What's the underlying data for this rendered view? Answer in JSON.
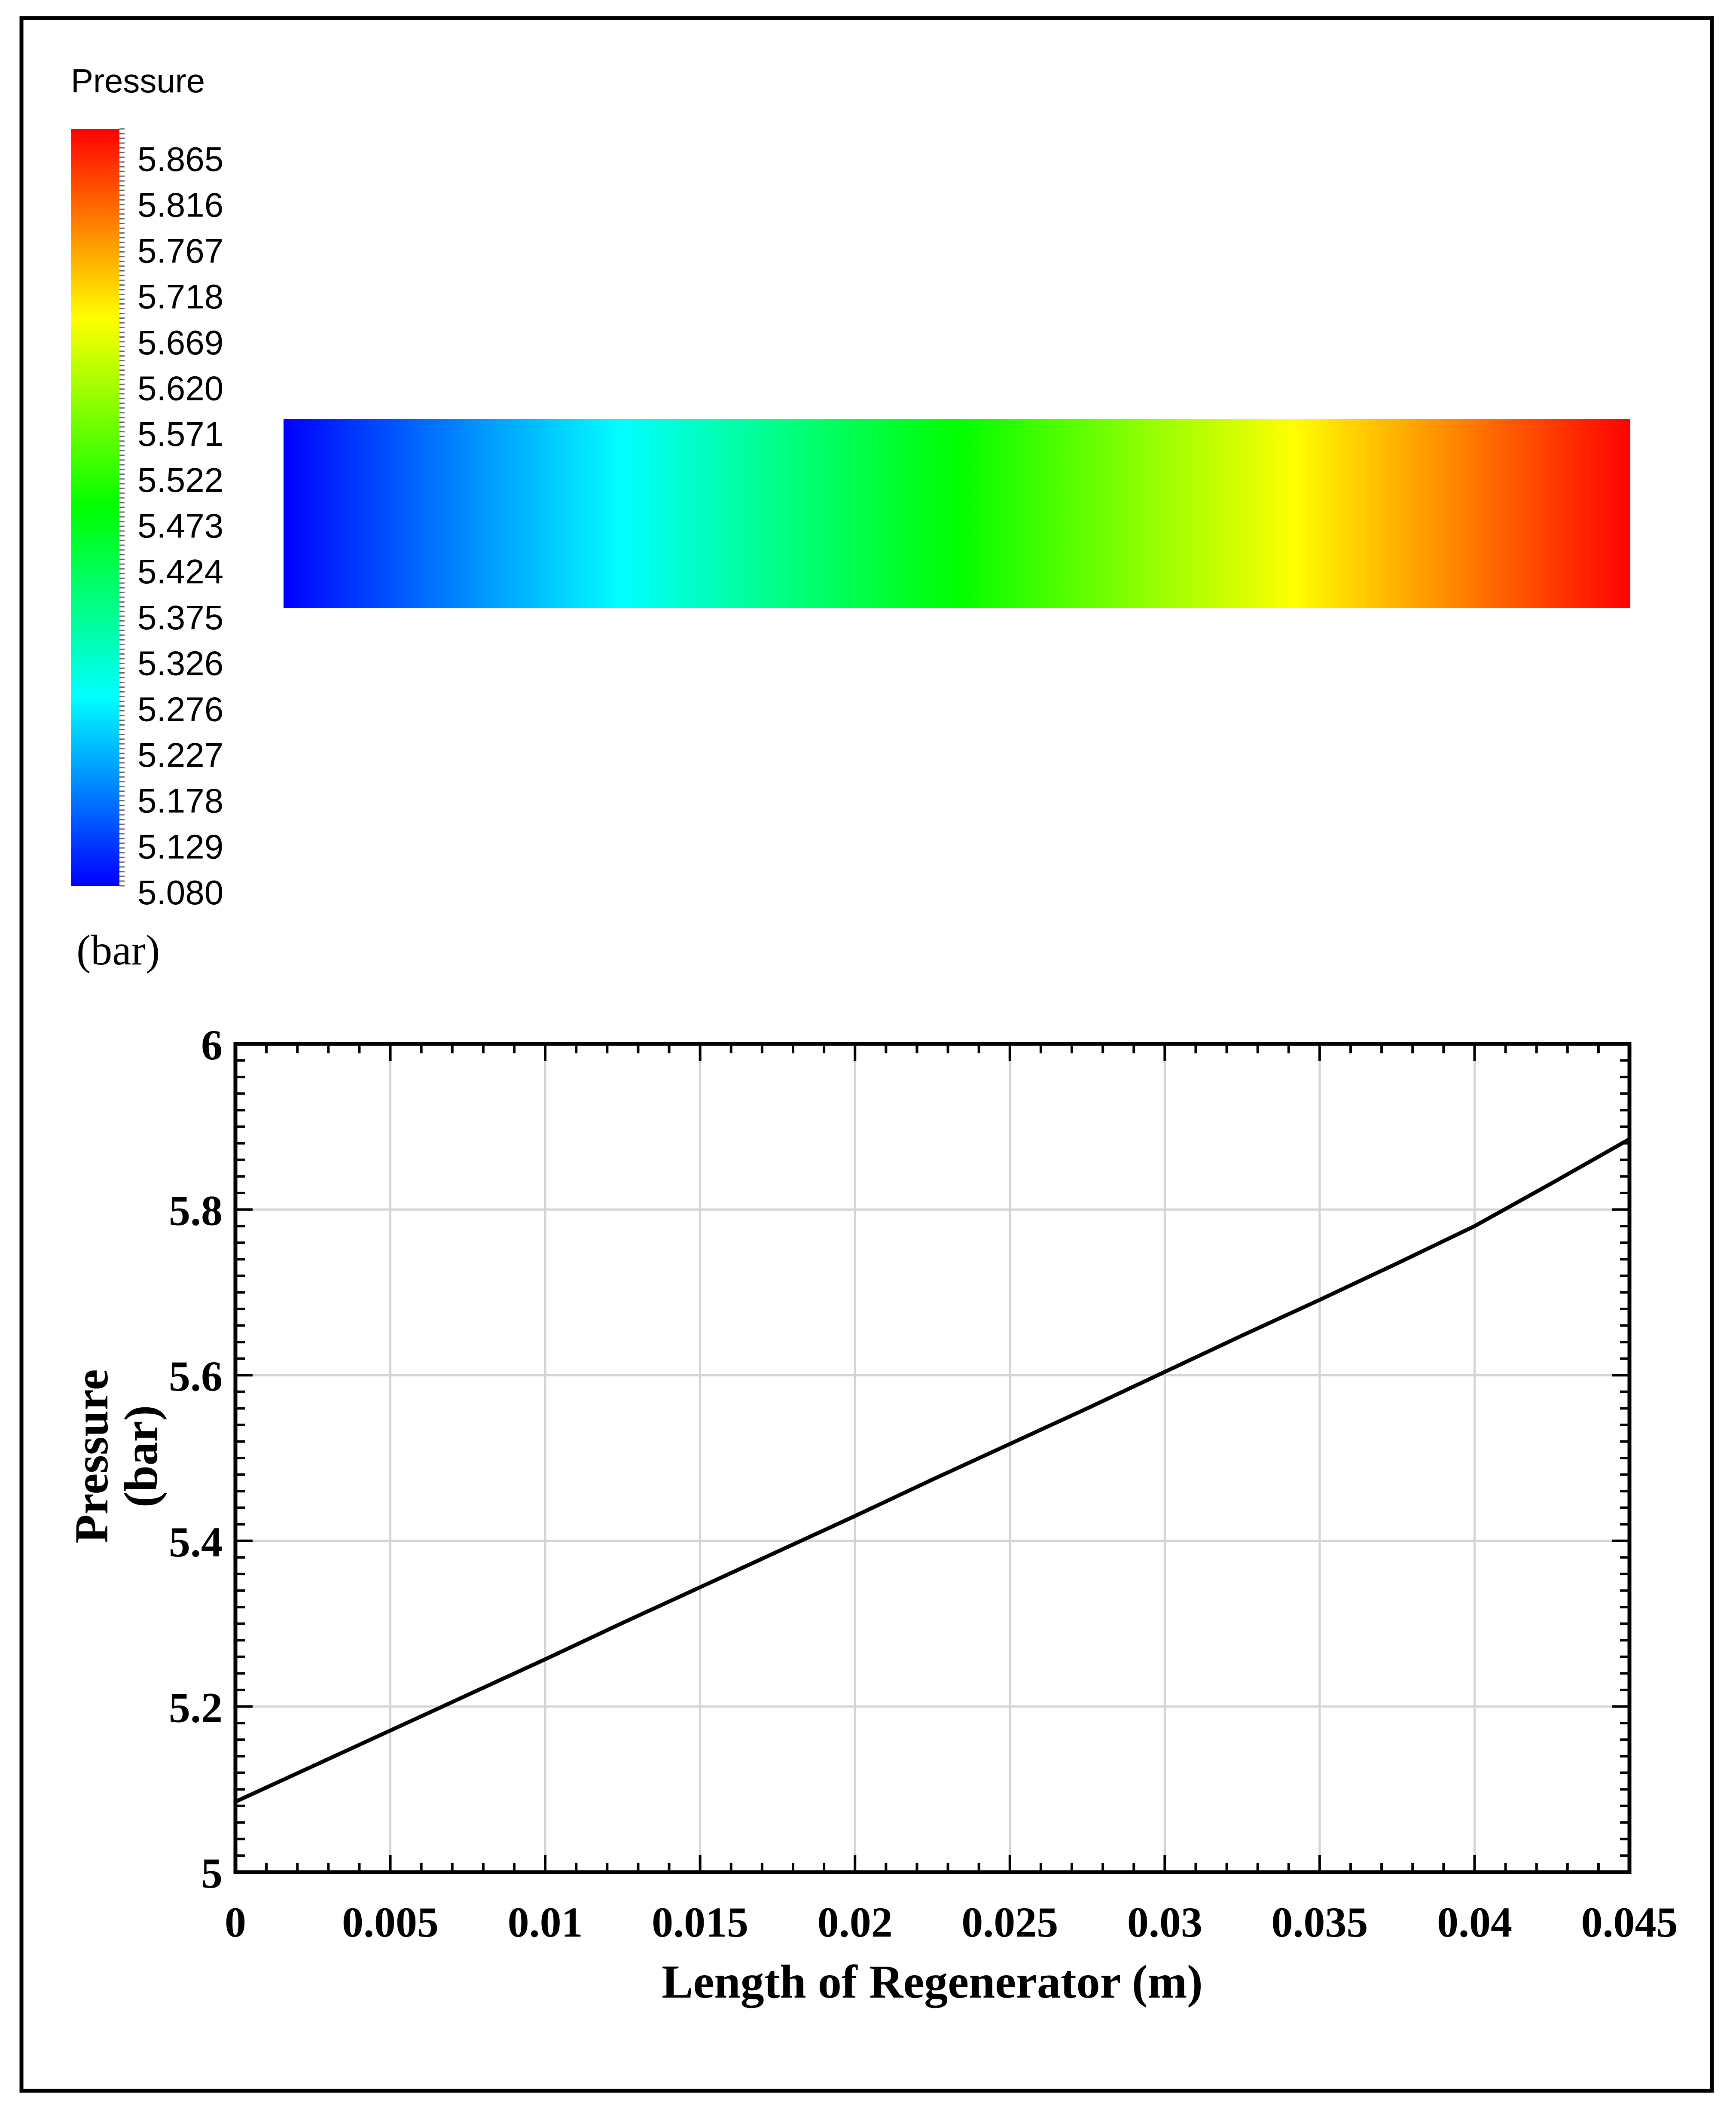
{
  "colorbar": {
    "title": "Pressure",
    "unit": "(bar)",
    "tick_labels": [
      "5.865",
      "5.816",
      "5.767",
      "5.718",
      "5.669",
      "5.620",
      "5.571",
      "5.522",
      "5.473",
      "5.424",
      "5.375",
      "5.326",
      "5.276",
      "5.227",
      "5.178",
      "5.129",
      "5.080"
    ],
    "colormap": [
      "#0000ff",
      "#0080ff",
      "#00ffff",
      "#00ff80",
      "#00ff00",
      "#80ff00",
      "#ffff00",
      "#ff8000",
      "#ff0000"
    ]
  },
  "contour": {
    "min": 5.08,
    "max": 5.865,
    "direction": "increasing left to right"
  },
  "chart_data": {
    "type": "line",
    "title": "",
    "xlabel": "Length of Regenerator (m)",
    "ylabel_lines": [
      "Pressure",
      "(bar)"
    ],
    "xlim": [
      0,
      0.045
    ],
    "ylim": [
      5,
      6
    ],
    "xticks": [
      0,
      0.005,
      0.01,
      0.015,
      0.02,
      0.025,
      0.03,
      0.035,
      0.04,
      0.045
    ],
    "xtick_labels": [
      "0",
      "0.005",
      "0.01",
      "0.015",
      "0.02",
      "0.025",
      "0.03",
      "0.035",
      "0.04",
      "0.045"
    ],
    "yticks": [
      5,
      5.2,
      5.4,
      5.6,
      5.8,
      6
    ],
    "ytick_labels": [
      "5",
      "5.2",
      "5.4",
      "5.6",
      "5.8",
      "6"
    ],
    "grid": true,
    "series": [
      {
        "color": "#000000",
        "x": [
          0,
          0.0025,
          0.005,
          0.0075,
          0.01,
          0.0125,
          0.015,
          0.0175,
          0.02,
          0.0225,
          0.025,
          0.0275,
          0.03,
          0.0325,
          0.035,
          0.0375,
          0.04,
          0.0425,
          0.045
        ],
        "y": [
          5.085,
          5.128,
          5.171,
          5.214,
          5.257,
          5.301,
          5.344,
          5.387,
          5.43,
          5.474,
          5.517,
          5.56,
          5.604,
          5.648,
          5.691,
          5.735,
          5.78,
          5.832,
          5.885
        ]
      }
    ]
  }
}
